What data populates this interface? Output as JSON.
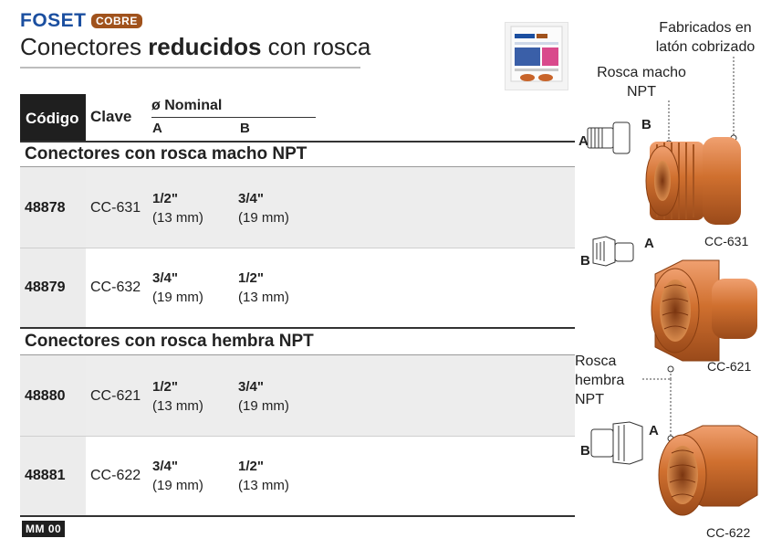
{
  "header": {
    "brand": "FOSET",
    "badge": "COBRE",
    "title_pre": "Conectores ",
    "title_bold": "reducidos",
    "title_post": " con rosca"
  },
  "table": {
    "col_code": "Código",
    "col_clave": "Clave",
    "col_nominal": "ø Nominal",
    "col_a": "A",
    "col_b": "B"
  },
  "sections": [
    {
      "title": "Conectores con rosca macho NPT",
      "rows": [
        {
          "code": "48878",
          "clave": "CC-631",
          "a_frac": "1/2\"",
          "a_mm": "(13 mm)",
          "b_frac": "3/4\"",
          "b_mm": "(19 mm)"
        },
        {
          "code": "48879",
          "clave": "CC-632",
          "a_frac": "3/4\"",
          "a_mm": "(19 mm)",
          "b_frac": "1/2\"",
          "b_mm": "(13 mm)"
        }
      ]
    },
    {
      "title": "Conectores con rosca hembra NPT",
      "rows": [
        {
          "code": "48880",
          "clave": "CC-621",
          "a_frac": "1/2\"",
          "a_mm": "(13 mm)",
          "b_frac": "3/4\"",
          "b_mm": "(19 mm)"
        },
        {
          "code": "48881",
          "clave": "CC-622",
          "a_frac": "3/4\"",
          "a_mm": "(19 mm)",
          "b_frac": "1/2\"",
          "b_mm": "(13 mm)"
        }
      ]
    }
  ],
  "footer": {
    "code": "MM 00"
  },
  "annotations": {
    "fabricados": "Fabricados en latón cobrizado",
    "rosca_macho": "Rosca macho NPT",
    "rosca_hembra": "Rosca hembra NPT",
    "letter_a": "A",
    "letter_b": "B",
    "label_631": "CC-631",
    "label_621": "CC-621",
    "label_622": "CC-622"
  },
  "colors": {
    "brand_blue": "#1b4fa0",
    "copper": "#c8642a",
    "badge": "#a0521c"
  }
}
